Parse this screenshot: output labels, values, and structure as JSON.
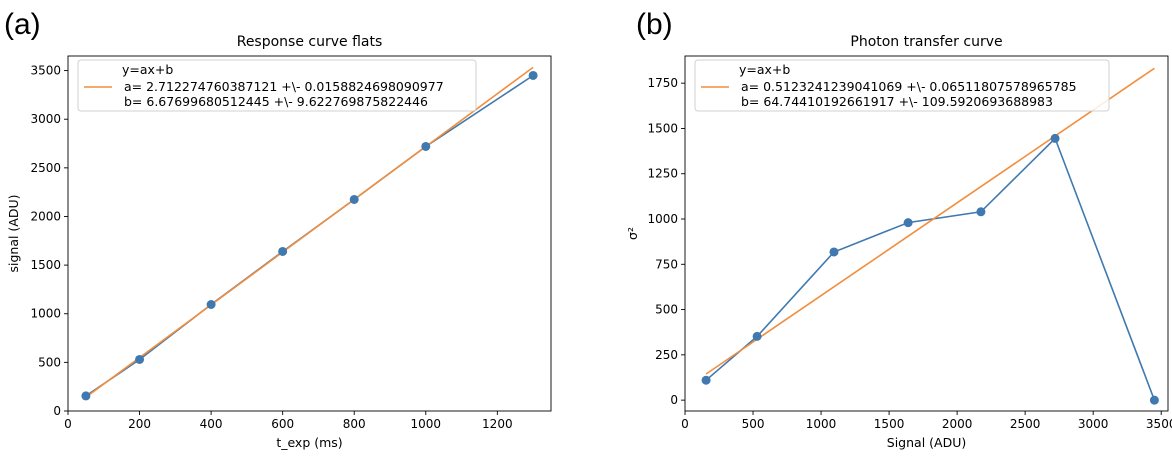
{
  "panels": {
    "a": "(a)",
    "b": "(b)"
  },
  "chart_data": [
    {
      "type": "scatter",
      "title": "Response curve flats",
      "xlabel": "t_exp (ms)",
      "ylabel": "signal (ADU)",
      "xlim": [
        0,
        1350
      ],
      "ylim": [
        0,
        3650
      ],
      "xticks": [
        0,
        200,
        400,
        600,
        800,
        1000,
        1200
      ],
      "yticks": [
        0,
        500,
        1000,
        1500,
        2000,
        2500,
        3000,
        3500
      ],
      "grid": false,
      "legend_position": "top-left",
      "legend": {
        "header": "y=ax+b",
        "line1": "a= 2.712274760387121 +\\- 0.0158824698090977",
        "line2": "b= 6.67699680512445 +\\- 9.622769875822446"
      },
      "series": [
        {
          "kind": "line-markers",
          "color": "#3f79b0",
          "x": [
            50,
            200,
            400,
            600,
            800,
            1000,
            1300
          ],
          "y": [
            155,
            530,
            1095,
            1640,
            2175,
            2720,
            3450
          ]
        },
        {
          "kind": "fit-line",
          "color": "#f28e3c",
          "x": [
            50,
            1300
          ],
          "y": [
            142.3,
            3532.9
          ]
        }
      ]
    },
    {
      "type": "scatter",
      "title": "Photon transfer curve",
      "xlabel": "Signal (ADU)",
      "ylabel": "σ²",
      "xlim": [
        0,
        3550
      ],
      "ylim": [
        -60,
        1900
      ],
      "xticks": [
        0,
        500,
        1000,
        1500,
        2000,
        2500,
        3000,
        3500
      ],
      "yticks": [
        0,
        250,
        500,
        750,
        1000,
        1250,
        1500,
        1750
      ],
      "grid": false,
      "legend_position": "top-left",
      "legend": {
        "header": "y=ax+b",
        "line1": "a= 0.5123241239041069 +\\- 0.06511807578965785",
        "line2": "b= 64.74410192661917 +\\- 109.5920693688983"
      },
      "series": [
        {
          "kind": "line-markers",
          "color": "#3f79b0",
          "x": [
            155,
            530,
            1095,
            1640,
            2175,
            2720,
            3450
          ],
          "y": [
            110,
            352,
            818,
            980,
            1040,
            1445,
            0
          ]
        },
        {
          "kind": "fit-line",
          "color": "#f28e3c",
          "x": [
            155,
            3450
          ],
          "y": [
            144.2,
            1832.2
          ]
        }
      ]
    }
  ]
}
